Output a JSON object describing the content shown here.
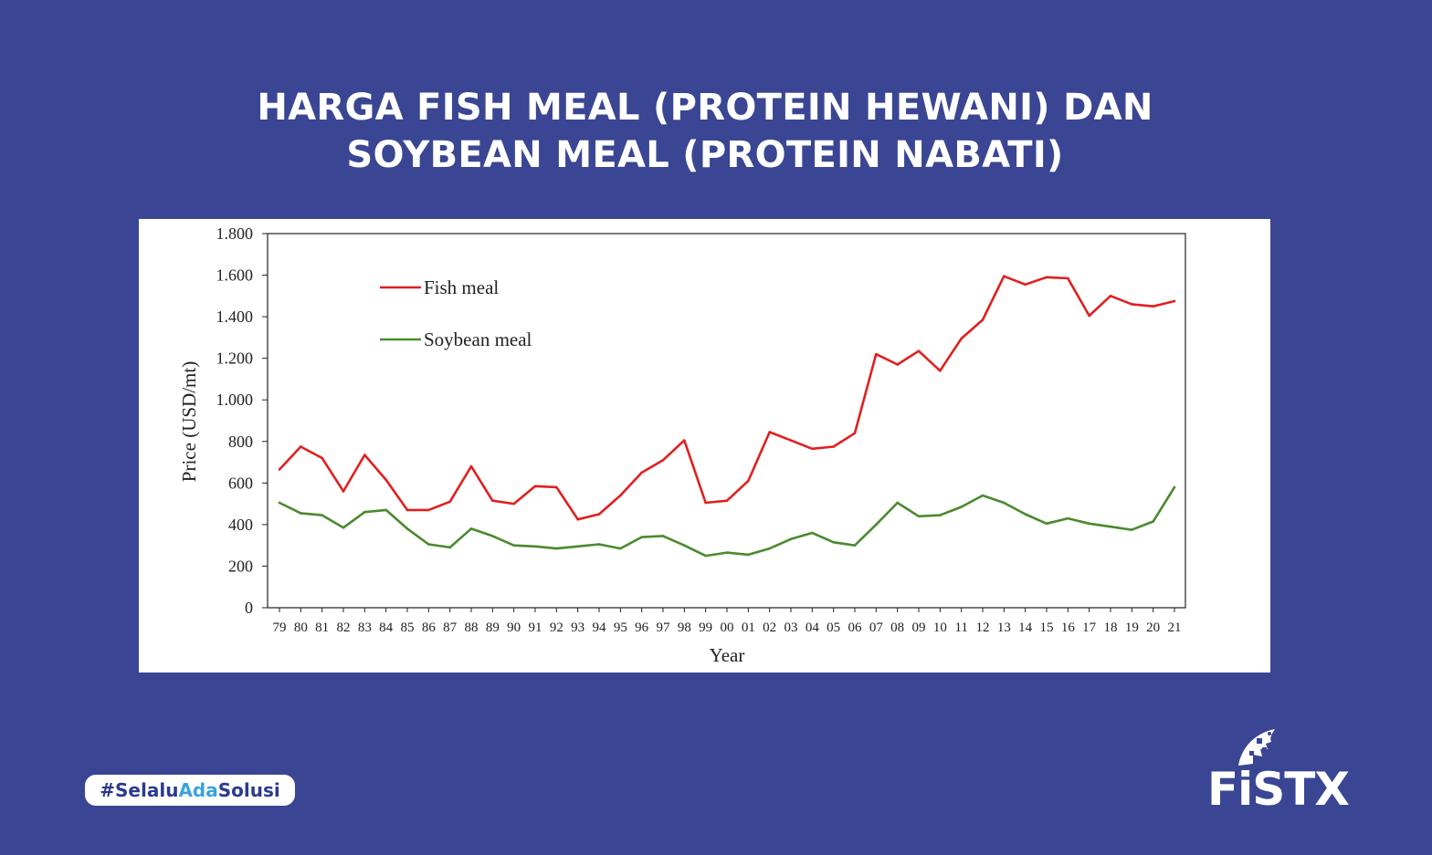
{
  "title": {
    "line1": "HARGA FISH MEAL (PROTEIN HEWANI) DAN",
    "line2": "SOYBEAN MEAL (PROTEIN NABATI)"
  },
  "hashtag": {
    "hash": "#",
    "part1": "Selalu",
    "part2": "Ada",
    "part3": "Solusi"
  },
  "logo": {
    "text": "FiSTX",
    "icon": "fish-logo-icon"
  },
  "colors": {
    "background": "#3a4693",
    "fish_meal": "#e11f1f",
    "soybean_meal": "#4a8a2e",
    "hashtag_text": "#2b3a8f",
    "hashtag_accent": "#3aa3dc"
  },
  "chart_data": {
    "type": "line",
    "xlabel": "Year",
    "ylabel": "Price (USD/mt)",
    "ylim": [
      0,
      1800
    ],
    "yticks": [
      0,
      200,
      400,
      600,
      800,
      1000,
      1200,
      1400,
      1600,
      1800
    ],
    "ytick_labels": [
      "0",
      "200",
      "400",
      "600",
      "800",
      "1.000",
      "1.200",
      "1.400",
      "1.600",
      "1.800"
    ],
    "legend_position": "top-left",
    "grid": false,
    "categories": [
      "79",
      "80",
      "81",
      "82",
      "83",
      "84",
      "85",
      "86",
      "87",
      "88",
      "89",
      "90",
      "91",
      "92",
      "93",
      "94",
      "95",
      "96",
      "97",
      "98",
      "99",
      "00",
      "01",
      "02",
      "03",
      "04",
      "05",
      "06",
      "07",
      "08",
      "09",
      "10",
      "11",
      "12",
      "13",
      "14",
      "15",
      "16",
      "17",
      "18",
      "19",
      "20",
      "21"
    ],
    "series": [
      {
        "name": "Fish meal",
        "color": "#e11f1f",
        "values": [
          665,
          775,
          720,
          560,
          735,
          615,
          470,
          470,
          510,
          680,
          515,
          500,
          585,
          580,
          425,
          450,
          540,
          650,
          710,
          805,
          505,
          515,
          610,
          845,
          805,
          765,
          775,
          840,
          1220,
          1170,
          1235,
          1140,
          1295,
          1385,
          1595,
          1555,
          1590,
          1585,
          1405,
          1500,
          1460,
          1450,
          1475
        ]
      },
      {
        "name": "Soybean meal",
        "color": "#4a8a2e",
        "values": [
          505,
          455,
          445,
          385,
          460,
          470,
          380,
          305,
          290,
          380,
          345,
          300,
          295,
          285,
          295,
          305,
          285,
          340,
          345,
          300,
          250,
          265,
          255,
          285,
          330,
          360,
          315,
          300,
          400,
          505,
          440,
          445,
          485,
          540,
          505,
          450,
          405,
          430,
          405,
          390,
          375,
          415,
          580
        ]
      }
    ]
  }
}
